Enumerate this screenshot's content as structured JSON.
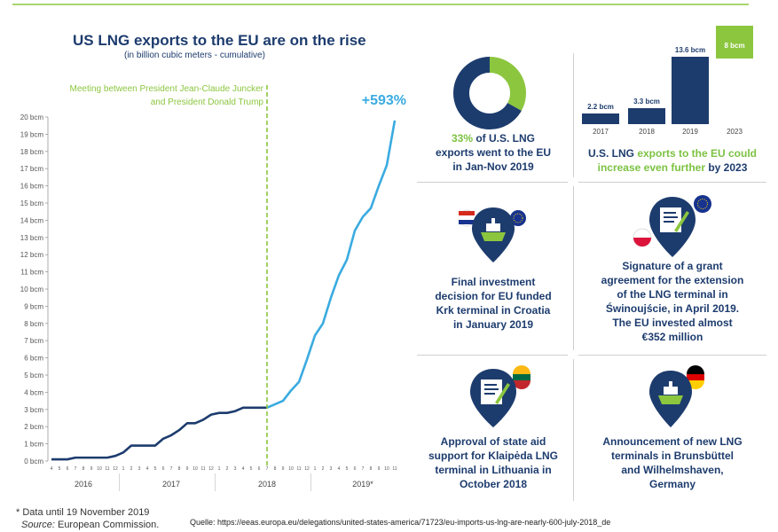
{
  "header": {
    "title": "US LNG exports to the EU are on the rise",
    "subtitle": "(in billion cubic meters - cumulative)"
  },
  "chart_data": [
    {
      "type": "line",
      "title": "US LNG exports to the EU are on the rise",
      "subtitle": "(in billion cubic meters - cumulative)",
      "y_ticks": [
        "0 bcm",
        "1 bcm",
        "2 bcm",
        "3 bcm",
        "4 bcm",
        "5 bcm",
        "6 bcm",
        "7 bcm",
        "8 bcm",
        "9 bcm",
        "10 bcm",
        "11 bcm",
        "12 bcm",
        "13 bcm",
        "14 bcm",
        "15 bcm",
        "16 bcm",
        "17 bcm",
        "18 bcm",
        "19 bcm",
        "20 bcm"
      ],
      "ylim": [
        0,
        20
      ],
      "month_ticks": [
        "4",
        "5",
        "6",
        "7",
        "8",
        "9",
        "10",
        "11",
        "12",
        "1",
        "2",
        "3",
        "4",
        "5",
        "6",
        "7",
        "8",
        "9",
        "10",
        "11",
        "12",
        "1",
        "2",
        "3",
        "4",
        "5",
        "6",
        "7",
        "8",
        "9",
        "10",
        "11",
        "12",
        "1",
        "2",
        "3",
        "4",
        "5",
        "6",
        "7",
        "8",
        "9",
        "10",
        "11"
      ],
      "years": [
        "2016",
        "2017",
        "2018",
        "2019*"
      ],
      "annotation": "Meeting between President Jean-Claude Juncker and President Donald Trump",
      "annotation_line1": "Meeting between President Jean-Claude Juncker",
      "annotation_line2": "and President Donald Trump",
      "annotation_month_index": 27,
      "growth_label": "+593%",
      "grid": false,
      "series": [
        {
          "values_before": [
            0.1,
            0.1,
            0.1,
            0.2,
            0.2,
            0.2,
            0.2,
            0.2,
            0.3,
            0.5,
            0.9,
            0.9,
            0.9,
            0.9,
            1.3,
            1.5,
            1.8,
            2.2,
            2.2,
            2.4,
            2.7,
            2.8,
            2.8,
            2.9,
            3.1,
            3.1,
            3.1,
            3.1
          ],
          "values_after": [
            3.1,
            3.3,
            3.5,
            4.1,
            4.6,
            5.9,
            7.3,
            8.0,
            9.5,
            10.8,
            11.7,
            13.4,
            14.2,
            14.7,
            16.0,
            17.2,
            19.8
          ]
        }
      ]
    },
    {
      "type": "pie",
      "slices": [
        {
          "label": "EU",
          "value": 33
        },
        {
          "label": "Other",
          "value": 67
        }
      ]
    },
    {
      "type": "bar",
      "categories": [
        "2017",
        "2018",
        "2019",
        "2023"
      ],
      "values": [
        2.2,
        3.3,
        13.6,
        8
      ],
      "value_labels": [
        "2.2 bcm",
        "3.3 bcm",
        "13.6 bcm",
        "8 bcm"
      ]
    }
  ],
  "panels": {
    "donut": {
      "pct": "33%",
      "line1": " of U.S. LNG",
      "line2": "exports went to the EU",
      "line3": "in Jan-Nov 2019"
    },
    "bars": {
      "text_a": "U.S. LNG ",
      "text_green": "exports to the EU could",
      "text_green2": "increase even further",
      "text_b": " by 2023"
    },
    "krk": {
      "lines": [
        "Final investment",
        "decision for EU funded",
        "Krk terminal in Croatia",
        "in January 2019"
      ]
    },
    "swinoujscie": {
      "lines": [
        "Signature of a grant",
        "agreement for the extension",
        "of the LNG terminal in",
        "Świnoujście, in April 2019.",
        "The EU invested almost",
        "€352 million"
      ]
    },
    "klaipeda": {
      "lines": [
        "Approval of state aid",
        "support for Klaipėda LNG",
        "terminal in Lithuania in",
        "October 2018"
      ]
    },
    "germany": {
      "lines": [
        "Announcement of new LNG",
        "terminals in Brunsbüttel",
        "and Wilhelmshaven,",
        "Germany"
      ]
    }
  },
  "footer": {
    "note": "* Data until 19 November 2019",
    "source_label": "Source:",
    "source_value": " European Commission.",
    "url": "Quelle: https://eeas.europa.eu/delegations/united-states-america/71723/eu-imports-us-lng-are-nearly-600-july-2018_de"
  },
  "icons": {
    "ship": "ship-pin-icon",
    "document": "document-sign-icon",
    "flags": [
      "flag-croatia-icon",
      "flag-eu-icon",
      "flag-poland-icon",
      "flag-lithuania-icon",
      "flag-germany-icon"
    ]
  },
  "colors": {
    "navy": "#1d3c6e",
    "green": "#8cc63f",
    "light_blue": "#3aabe0"
  }
}
